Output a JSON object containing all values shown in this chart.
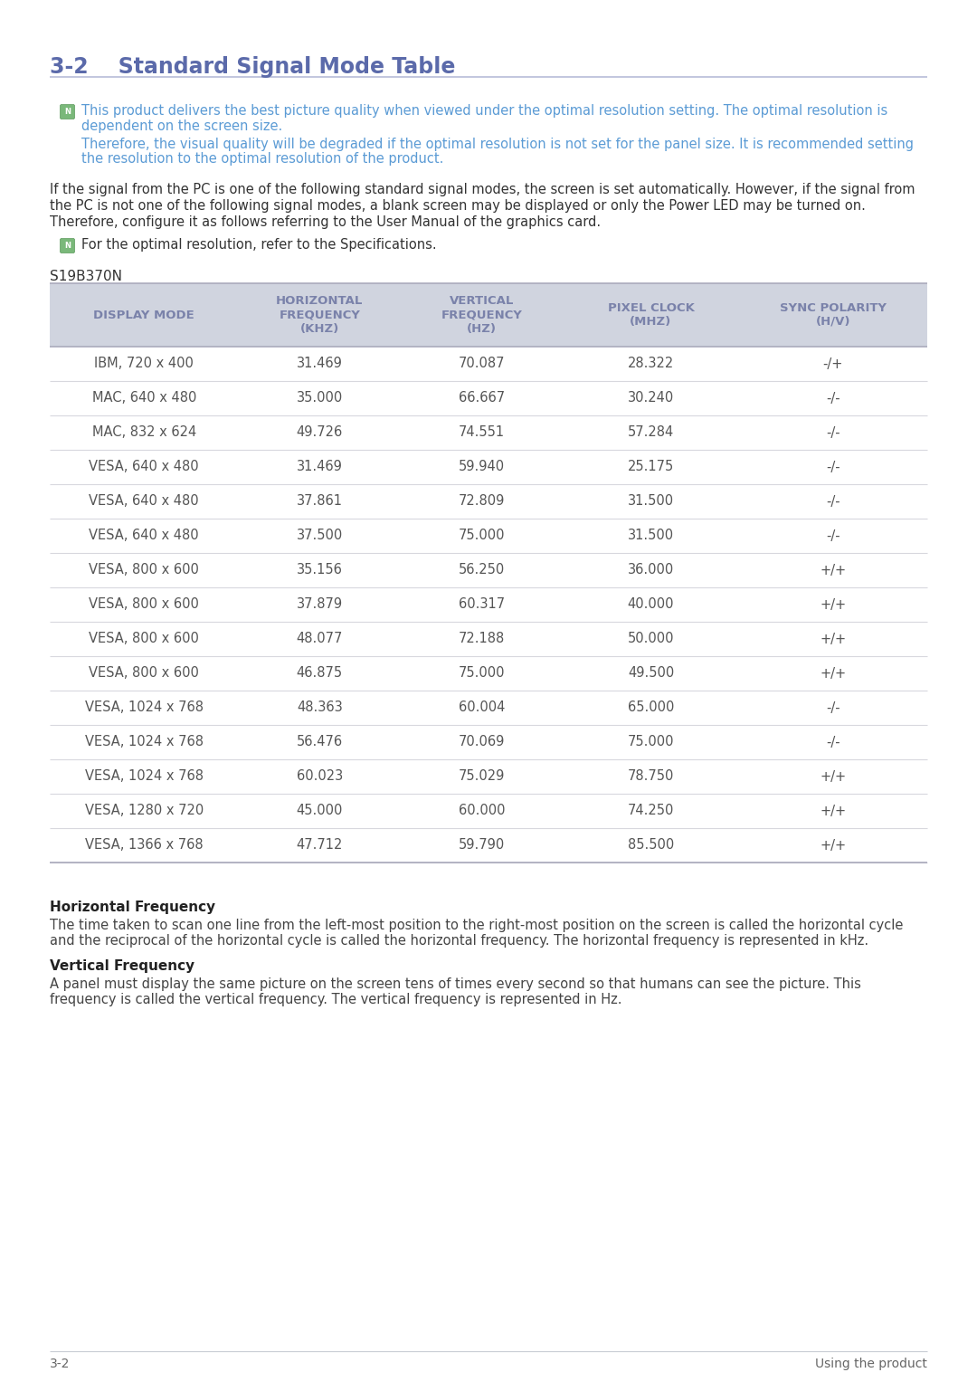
{
  "title": "3-2    Standard Signal Mode Table",
  "title_color": "#5b6aaa",
  "page_bg": "#ffffff",
  "note_text_color": "#5b9bd5",
  "note1_line1": "This product delivers the best picture quality when viewed under the optimal resolution setting. The optimal resolution is",
  "note1_line2": "dependent on the screen size.",
  "note2_line1": "Therefore, the visual quality will be degraded if the optimal resolution is not set for the panel size. It is recommended setting",
  "note2_line2": "the resolution to the optimal resolution of the product.",
  "body_text_lines": [
    "If the signal from the PC is one of the following standard signal modes, the screen is set automatically. However, if the signal from",
    "the PC is not one of the following signal modes, a blank screen may be displayed or only the Power LED may be turned on.",
    "Therefore, configure it as follows referring to the User Manual of the graphics card."
  ],
  "note3": "For the optimal resolution, refer to the Specifications.",
  "section_label": "S19B370N",
  "table_headers": [
    "DISPLAY MODE",
    "HORIZONTAL\nFREQUENCY\n(KHZ)",
    "VERTICAL\nFREQUENCY\n(HZ)",
    "PIXEL CLOCK\n(MHZ)",
    "SYNC POLARITY\n(H/V)"
  ],
  "table_header_color": "#7a82aa",
  "table_header_bg": "#d0d4df",
  "table_row_bg": "#ffffff",
  "table_border_color": "#c0c4cc",
  "table_divider_color": "#d8d8de",
  "table_data": [
    [
      "IBM, 720 x 400",
      "31.469",
      "70.087",
      "28.322",
      "-/+"
    ],
    [
      "MAC, 640 x 480",
      "35.000",
      "66.667",
      "30.240",
      "-/-"
    ],
    [
      "MAC, 832 x 624",
      "49.726",
      "74.551",
      "57.284",
      "-/-"
    ],
    [
      "VESA, 640 x 480",
      "31.469",
      "59.940",
      "25.175",
      "-/-"
    ],
    [
      "VESA, 640 x 480",
      "37.861",
      "72.809",
      "31.500",
      "-/-"
    ],
    [
      "VESA, 640 x 480",
      "37.500",
      "75.000",
      "31.500",
      "-/-"
    ],
    [
      "VESA, 800 x 600",
      "35.156",
      "56.250",
      "36.000",
      "+/+"
    ],
    [
      "VESA, 800 x 600",
      "37.879",
      "60.317",
      "40.000",
      "+/+"
    ],
    [
      "VESA, 800 x 600",
      "48.077",
      "72.188",
      "50.000",
      "+/+"
    ],
    [
      "VESA, 800 x 600",
      "46.875",
      "75.000",
      "49.500",
      "+/+"
    ],
    [
      "VESA, 1024 x 768",
      "48.363",
      "60.004",
      "65.000",
      "-/-"
    ],
    [
      "VESA, 1024 x 768",
      "56.476",
      "70.069",
      "75.000",
      "-/-"
    ],
    [
      "VESA, 1024 x 768",
      "60.023",
      "75.029",
      "78.750",
      "+/+"
    ],
    [
      "VESA, 1280 x 720",
      "45.000",
      "60.000",
      "74.250",
      "+/+"
    ],
    [
      "VESA, 1366 x 768",
      "47.712",
      "59.790",
      "85.500",
      "+/+"
    ]
  ],
  "table_text_color": "#555555",
  "footer_left": "3-2",
  "footer_right": "Using the product",
  "hfreq_title": "Horizontal Frequency",
  "hfreq_text_line1": "The time taken to scan one line from the left-most position to the right-most position on the screen is called the horizontal cycle",
  "hfreq_text_line2": "and the reciprocal of the horizontal cycle is called the horizontal frequency. The horizontal frequency is represented in kHz.",
  "vfreq_title": "Vertical Frequency",
  "vfreq_text_line1": "A panel must display the same picture on the screen tens of times every second so that humans can see the picture. This",
  "vfreq_text_line2": "frequency is called the vertical frequency. The vertical frequency is represented in Hz."
}
